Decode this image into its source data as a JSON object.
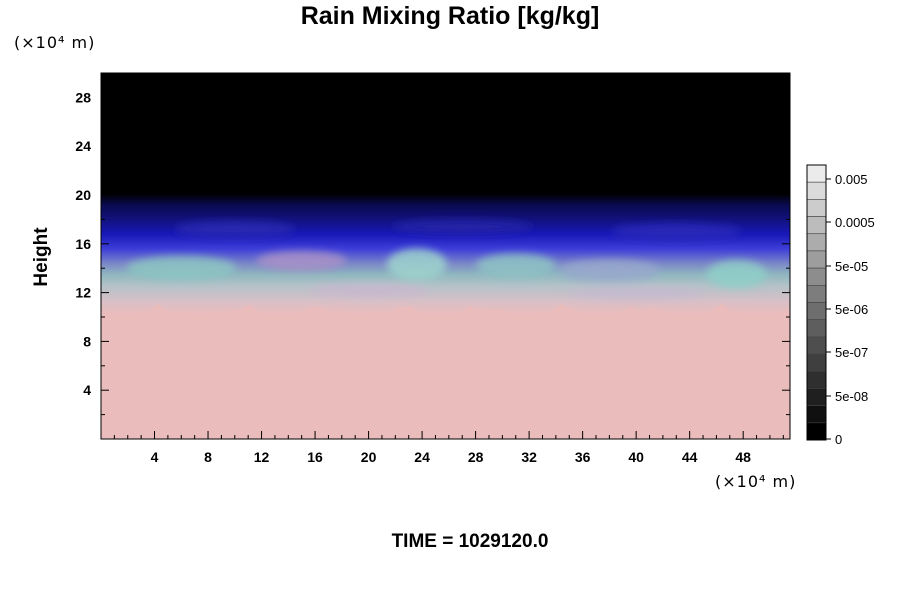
{
  "chart_data": {
    "type": "heatmap",
    "title": "Rain Mixing Ratio [kg/kg]",
    "ylabel": "Height",
    "xunit": "(×10⁴ m)",
    "yunit": "(×10⁴ m)",
    "xlim": [
      0,
      51.5
    ],
    "ylim": [
      0,
      30
    ],
    "xticks": [
      4,
      8,
      12,
      16,
      20,
      24,
      28,
      32,
      36,
      40,
      44,
      48
    ],
    "yticks": [
      4,
      8,
      12,
      16,
      20,
      24,
      28
    ],
    "time_label": "TIME = 1029120.0",
    "colorbar": {
      "labels": [
        "0.005",
        "0.0005",
        "5e-05",
        "5e-06",
        "5e-07",
        "5e-08",
        "0"
      ],
      "levels": 16
    },
    "layers": [
      {
        "name": "upper",
        "color": "#000000",
        "y_range": [
          19.5,
          30
        ]
      },
      {
        "name": "transition",
        "color": "#1a1aa0",
        "y_range": [
          15,
          19.5
        ]
      },
      {
        "name": "mixed",
        "color": "#7fb3b8",
        "y_range": [
          10,
          15
        ]
      },
      {
        "name": "lower",
        "color": "#ebbcbc",
        "y_range": [
          0,
          10
        ]
      }
    ]
  }
}
